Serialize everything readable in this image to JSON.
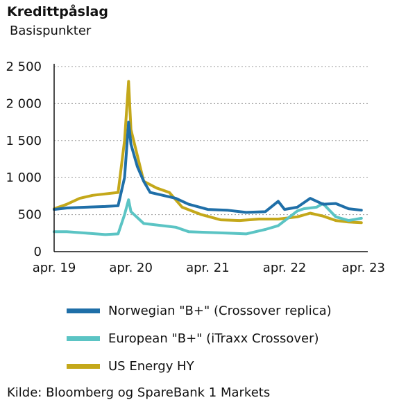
{
  "chart_data": {
    "type": "line",
    "title": "Kredittpåslag",
    "subtitle": "Basispunkter",
    "xlabel": "",
    "ylabel": "",
    "ylim": [
      0,
      2500
    ],
    "yticks": [
      0,
      500,
      1000,
      1500,
      2000,
      2500
    ],
    "ytick_labels": [
      "0",
      "500",
      "1 000",
      "1 500",
      "2 000",
      "2 500"
    ],
    "xticks": [
      "apr. 19",
      "apr. 20",
      "apr. 21",
      "apr. 22",
      "apr. 23"
    ],
    "xlim": [
      "2019-04",
      "2023-05"
    ],
    "grid": "horizontal dotted",
    "legend_position": "bottom",
    "series": [
      {
        "name": "Norwegian \"B+\" (Crossover replica)",
        "color": "#1f6fa8",
        "points": [
          [
            "2019-04",
            570
          ],
          [
            "2019-06",
            590
          ],
          [
            "2019-09",
            600
          ],
          [
            "2019-12",
            610
          ],
          [
            "2020-02",
            620
          ],
          [
            "2020-03",
            1000
          ],
          [
            "2020-03-20",
            1750
          ],
          [
            "2020-04",
            1450
          ],
          [
            "2020-05",
            1150
          ],
          [
            "2020-06",
            950
          ],
          [
            "2020-07",
            800
          ],
          [
            "2020-09",
            760
          ],
          [
            "2020-11",
            720
          ],
          [
            "2021-01",
            640
          ],
          [
            "2021-04",
            570
          ],
          [
            "2021-07",
            560
          ],
          [
            "2021-10",
            530
          ],
          [
            "2022-01",
            540
          ],
          [
            "2022-03",
            680
          ],
          [
            "2022-04",
            570
          ],
          [
            "2022-06",
            600
          ],
          [
            "2022-08",
            720
          ],
          [
            "2022-10",
            640
          ],
          [
            "2022-12",
            650
          ],
          [
            "2023-02",
            580
          ],
          [
            "2023-04",
            560
          ]
        ]
      },
      {
        "name": "European \"B+\" (iTraxx Crossover)",
        "color": "#5bc4c4",
        "points": [
          [
            "2019-04",
            270
          ],
          [
            "2019-06",
            270
          ],
          [
            "2019-09",
            250
          ],
          [
            "2019-12",
            230
          ],
          [
            "2020-02",
            240
          ],
          [
            "2020-03",
            500
          ],
          [
            "2020-03-20",
            700
          ],
          [
            "2020-04",
            540
          ],
          [
            "2020-06",
            380
          ],
          [
            "2020-09",
            350
          ],
          [
            "2020-11",
            330
          ],
          [
            "2021-01",
            270
          ],
          [
            "2021-04",
            260
          ],
          [
            "2021-07",
            250
          ],
          [
            "2021-10",
            240
          ],
          [
            "2022-01",
            300
          ],
          [
            "2022-03",
            350
          ],
          [
            "2022-06",
            550
          ],
          [
            "2022-07",
            580
          ],
          [
            "2022-09",
            600
          ],
          [
            "2022-10",
            650
          ],
          [
            "2022-12",
            470
          ],
          [
            "2023-02",
            420
          ],
          [
            "2023-04",
            450
          ]
        ]
      },
      {
        "name": "US Energy HY",
        "color": "#c4a81a",
        "points": [
          [
            "2019-04",
            580
          ],
          [
            "2019-06",
            640
          ],
          [
            "2019-08",
            720
          ],
          [
            "2019-10",
            760
          ],
          [
            "2019-12",
            780
          ],
          [
            "2020-02",
            800
          ],
          [
            "2020-03",
            1500
          ],
          [
            "2020-03-20",
            2300
          ],
          [
            "2020-04",
            1650
          ],
          [
            "2020-05",
            1300
          ],
          [
            "2020-06",
            950
          ],
          [
            "2020-08",
            860
          ],
          [
            "2020-10",
            800
          ],
          [
            "2020-12",
            600
          ],
          [
            "2021-03",
            500
          ],
          [
            "2021-06",
            430
          ],
          [
            "2021-09",
            420
          ],
          [
            "2021-12",
            440
          ],
          [
            "2022-03",
            440
          ],
          [
            "2022-06",
            470
          ],
          [
            "2022-08",
            520
          ],
          [
            "2022-10",
            480
          ],
          [
            "2022-12",
            420
          ],
          [
            "2023-02",
            400
          ],
          [
            "2023-04",
            390
          ]
        ]
      }
    ]
  },
  "source": "Kilde: Bloomberg og SpareBank 1 Markets"
}
